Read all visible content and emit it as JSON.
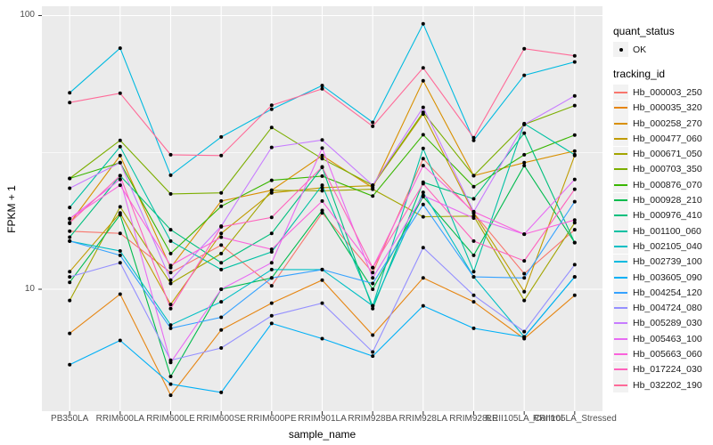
{
  "figure": {
    "ylabel": "FPKM + 1",
    "xlabel": "sample_name",
    "y_tick_labels": [
      "100",
      "10"
    ],
    "legend": {
      "quant_status_title": "quant_status",
      "quant_status_ok_label": "OK",
      "tracking_id_title": "tracking_id"
    },
    "colors": {
      "panel_bg": "#EBEBEB",
      "grid": "#FFFFFF",
      "legend_key_bg": "#F2F2F2",
      "tick_mark": "#333333",
      "tick_text": "#4D4D4D",
      "point": "#000000"
    }
  },
  "chart_data": {
    "type": "line",
    "title": "",
    "xlabel": "sample_name",
    "ylabel": "FPKM + 1",
    "y_scale": "log10",
    "y_ticks": [
      10,
      100
    ],
    "y_minor_ticks": [
      31.6
    ],
    "ylim": [
      3.6,
      108
    ],
    "grid": true,
    "legend_position": "right",
    "point_legend": {
      "title": "quant_status",
      "items": [
        {
          "label": "OK",
          "marker": "black-point"
        }
      ]
    },
    "categories": [
      "PB350LA",
      "RRIM600LA",
      "RRIM600LE",
      "RRIM600SE",
      "RRIM600PE",
      "RRIM901LA",
      "RRIM928BA",
      "RRIM928LA",
      "RRIM928LE",
      "RRII105LA_Control",
      "RRII105LA_Stressed"
    ],
    "series": [
      {
        "name": "Hb_000003_250",
        "color": "#F8766D",
        "values": [
          16.3,
          16.0,
          11.5,
          14.5,
          10.3,
          19.0,
          11.5,
          30.0,
          19.0,
          11.4,
          16.5
        ]
      },
      {
        "name": "Hb_000035_320",
        "color": "#E68613",
        "values": [
          6.9,
          9.6,
          4.1,
          7.1,
          8.9,
          10.8,
          6.8,
          11.0,
          9.0,
          6.6,
          9.5
        ]
      },
      {
        "name": "Hb_000258_270",
        "color": "#D89000",
        "values": [
          17.4,
          30.8,
          12.0,
          21.0,
          23.0,
          30.8,
          23.5,
          57.8,
          26.0,
          29.0,
          32.0
        ]
      },
      {
        "name": "Hb_000477_060",
        "color": "#C09B00",
        "values": [
          11.6,
          19.0,
          8.8,
          16.0,
          22.5,
          23.5,
          23.9,
          43.7,
          19.0,
          9.8,
          30.8
        ]
      },
      {
        "name": "Hb_000671_050",
        "color": "#A3A500",
        "values": [
          9.1,
          20.0,
          10.5,
          13.5,
          23.0,
          22.9,
          23.2,
          18.4,
          18.5,
          9.1,
          17.5
        ]
      },
      {
        "name": "Hb_000703_350",
        "color": "#7CAE00",
        "values": [
          25.4,
          35.0,
          22.3,
          22.5,
          39.0,
          30.0,
          24.0,
          44.3,
          26.0,
          40.0,
          46.9
        ]
      },
      {
        "name": "Hb_000876_070",
        "color": "#39B600",
        "values": [
          25.4,
          29.0,
          13.5,
          20.1,
          25.0,
          25.9,
          21.9,
          36.7,
          23.7,
          31.0,
          36.6
        ]
      },
      {
        "name": "Hb_000928_210",
        "color": "#00BB4E",
        "values": [
          10.6,
          18.7,
          4.8,
          10.0,
          11.0,
          19.4,
          10.0,
          21.8,
          13.3,
          28.3,
          14.8
        ]
      },
      {
        "name": "Hb_000976_410",
        "color": "#00BF7D",
        "values": [
          15.5,
          26.0,
          16.5,
          12.5,
          16.0,
          27.9,
          8.5,
          24.6,
          21.4,
          37.2,
          14.8
        ]
      },
      {
        "name": "Hb_001100_060",
        "color": "#00C1A3",
        "values": [
          19.9,
          33.2,
          15.0,
          11.8,
          13.7,
          24.0,
          8.7,
          32.7,
          11.6,
          40.3,
          31.0
        ]
      },
      {
        "name": "Hb_002105_040",
        "color": "#00BFC4",
        "values": [
          15.0,
          13.8,
          7.4,
          9.0,
          11.8,
          11.8,
          8.7,
          22.6,
          11.1,
          6.7,
          11.1
        ]
      },
      {
        "name": "Hb_002739_100",
        "color": "#00BAE0",
        "values": [
          52.2,
          76.0,
          26.1,
          36.0,
          45.5,
          55.5,
          40.7,
          93.3,
          35.0,
          60.5,
          67.7
        ]
      },
      {
        "name": "Hb_003605_090",
        "color": "#00B0F6",
        "values": [
          5.3,
          6.5,
          4.5,
          4.2,
          7.5,
          6.6,
          5.7,
          8.7,
          7.2,
          6.7,
          11.1
        ]
      },
      {
        "name": "Hb_004254_120",
        "color": "#35A2FF",
        "values": [
          15.0,
          13.3,
          7.2,
          7.9,
          11.0,
          11.8,
          10.5,
          20.4,
          11.1,
          11.0,
          20.9
        ]
      },
      {
        "name": "Hb_004724_080",
        "color": "#9590FF",
        "values": [
          11.1,
          12.5,
          5.5,
          6.1,
          8.0,
          8.9,
          5.9,
          14.2,
          9.5,
          7.0,
          12.3
        ]
      },
      {
        "name": "Hb_005289_030",
        "color": "#C77CFF",
        "values": [
          23.4,
          29.0,
          10.8,
          17.0,
          33.0,
          35.1,
          24.0,
          46.2,
          19.2,
          40.0,
          50.9
        ]
      },
      {
        "name": "Hb_005463_100",
        "color": "#E76BF3",
        "values": [
          18.1,
          25.2,
          5.4,
          10.0,
          12.5,
          32.8,
          11.0,
          22.0,
          18.2,
          15.9,
          25.2
        ]
      },
      {
        "name": "Hb_005663_060",
        "color": "#FA62DB",
        "values": [
          18.1,
          24.0,
          12.2,
          15.5,
          14.0,
          21.0,
          12.0,
          28.3,
          19.2,
          15.9,
          17.9
        ]
      },
      {
        "name": "Hb_017224_030",
        "color": "#FF62BC",
        "values": [
          17.5,
          26.0,
          8.5,
          16.9,
          18.3,
          28.0,
          12.0,
          24.3,
          15.0,
          12.7,
          23.2
        ]
      },
      {
        "name": "Hb_032202_190",
        "color": "#FF6A98",
        "values": [
          48.1,
          52.0,
          31.0,
          30.8,
          47.0,
          54.0,
          39.4,
          64.4,
          35.8,
          75.7,
          71.3
        ]
      }
    ]
  }
}
